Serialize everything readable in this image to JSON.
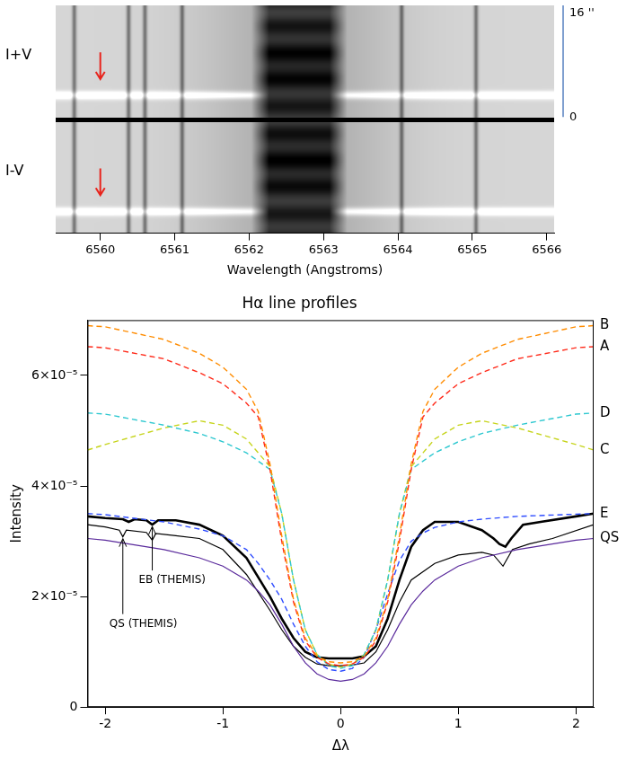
{
  "chart_data": [
    {
      "type": "spectrogram",
      "x_label": "Wavelength (Angstroms)",
      "xlim": [
        6559.4,
        6566.1
      ],
      "xticks": [
        6560,
        6561,
        6562,
        6563,
        6564,
        6565,
        6566
      ],
      "tick_labels": "x",
      "panels": [
        "I+V",
        "I-V"
      ],
      "scale_labels": [
        "16 ''",
        "0"
      ],
      "line_core": [
        6562.15,
        6563.2
      ],
      "absorption_lines": [
        6559.65,
        6560.38,
        6560.6,
        6561.1,
        6564.05,
        6565.05
      ],
      "arrow_wavelength": 6560
    },
    {
      "type": "line",
      "title": "Hα line profiles",
      "x_label": "Δλ",
      "y_label": "Intensity",
      "xlim": [
        -2.15,
        2.15
      ],
      "xticks": [
        -2,
        -1,
        0,
        1,
        2
      ],
      "ylim": [
        0,
        7e-05
      ],
      "yticks": [
        0,
        {
          "value": 2e-05,
          "label": "2×10⁻⁵"
        },
        {
          "value": 4e-05,
          "label": "4×10⁻⁵"
        },
        {
          "value": 6e-05,
          "label": "6×10⁻⁵"
        }
      ],
      "grid": false,
      "series": [
        {
          "name": "B",
          "color": "#ff8c00",
          "line_style": "dashed",
          "x": [
            -2.15,
            -2.0,
            -1.5,
            -1.2,
            -1.0,
            -0.8,
            -0.7,
            -0.6,
            -0.5,
            -0.4,
            -0.3,
            -0.2,
            -0.1,
            0,
            0.1,
            0.2,
            0.3,
            0.4,
            0.5,
            0.6,
            0.7,
            0.8,
            1.0,
            1.2,
            1.5,
            2.0,
            2.15
          ],
          "values": [
            6.9e-05,
            6.88e-05,
            6.65e-05,
            6.4e-05,
            6.15e-05,
            5.75e-05,
            5.35e-05,
            4.4e-05,
            3.1e-05,
            1.95e-05,
            1.25e-05,
            9.2e-06,
            8.2e-06,
            8e-06,
            8.2e-06,
            9.2e-06,
            1.25e-05,
            1.95e-05,
            3.1e-05,
            4.4e-05,
            5.35e-05,
            5.75e-05,
            6.15e-05,
            6.4e-05,
            6.65e-05,
            6.88e-05,
            6.9e-05
          ]
        },
        {
          "name": "A",
          "color": "#ff2a1a",
          "line_style": "dashed",
          "x": [
            -2.15,
            -2.0,
            -1.5,
            -1.2,
            -1.0,
            -0.8,
            -0.7,
            -0.6,
            -0.5,
            -0.4,
            -0.3,
            -0.2,
            -0.1,
            0,
            0.1,
            0.2,
            0.3,
            0.4,
            0.5,
            0.6,
            0.7,
            0.8,
            1.0,
            1.2,
            1.5,
            2.0,
            2.15
          ],
          "values": [
            6.52e-05,
            6.5e-05,
            6.3e-05,
            6.05e-05,
            5.85e-05,
            5.5e-05,
            5.25e-05,
            4.3e-05,
            3e-05,
            1.9e-05,
            1.2e-05,
            9e-06,
            7.8e-06,
            7.5e-06,
            7.8e-06,
            9e-06,
            1.2e-05,
            1.9e-05,
            3e-05,
            4.3e-05,
            5.25e-05,
            5.5e-05,
            5.85e-05,
            6.05e-05,
            6.3e-05,
            6.5e-05,
            6.52e-05
          ]
        },
        {
          "name": "D",
          "color": "#2ec8d0",
          "line_style": "dashed",
          "x": [
            -2.15,
            -2.0,
            -1.5,
            -1.2,
            -1.0,
            -0.8,
            -0.7,
            -0.6,
            -0.5,
            -0.4,
            -0.3,
            -0.2,
            -0.1,
            0,
            0.1,
            0.2,
            0.3,
            0.4,
            0.5,
            0.6,
            0.7,
            0.8,
            1.0,
            1.2,
            1.5,
            2.0,
            2.15
          ],
          "values": [
            5.32e-05,
            5.3e-05,
            5.1e-05,
            4.95e-05,
            4.8e-05,
            4.6e-05,
            4.45e-05,
            4.3e-05,
            3.5e-05,
            2.3e-05,
            1.4e-05,
            9.5e-06,
            7.5e-06,
            7e-06,
            7.5e-06,
            9.5e-06,
            1.4e-05,
            2.3e-05,
            3.5e-05,
            4.3e-05,
            4.45e-05,
            4.6e-05,
            4.8e-05,
            4.95e-05,
            5.1e-05,
            5.3e-05,
            5.32e-05
          ]
        },
        {
          "name": "C",
          "color": "#c6d41c",
          "line_style": "dashed",
          "x": [
            -2.15,
            -2.0,
            -1.5,
            -1.2,
            -1.0,
            -0.8,
            -0.7,
            -0.6,
            -0.5,
            -0.4,
            -0.3,
            -0.2,
            -0.1,
            0,
            0.1,
            0.2,
            0.3,
            0.4,
            0.5,
            0.6,
            0.7,
            0.8,
            1.0,
            1.2,
            1.5,
            2.0,
            2.15
          ],
          "values": [
            4.65e-05,
            4.75e-05,
            5.05e-05,
            5.18e-05,
            5.1e-05,
            4.85e-05,
            4.6e-05,
            4.35e-05,
            3.5e-05,
            2.3e-05,
            1.4e-05,
            9.5e-06,
            7.8e-06,
            7.2e-06,
            7.8e-06,
            9.5e-06,
            1.4e-05,
            2.3e-05,
            3.5e-05,
            4.35e-05,
            4.6e-05,
            4.85e-05,
            5.1e-05,
            5.18e-05,
            5.05e-05,
            4.75e-05,
            4.65e-05
          ]
        },
        {
          "name": "E",
          "color": "#2f4dff",
          "line_style": "dashed",
          "x": [
            -2.15,
            -2.0,
            -1.5,
            -1.2,
            -1.0,
            -0.8,
            -0.7,
            -0.6,
            -0.5,
            -0.4,
            -0.3,
            -0.2,
            -0.1,
            0,
            0.1,
            0.2,
            0.3,
            0.4,
            0.5,
            0.6,
            0.7,
            0.8,
            1.0,
            1.2,
            1.5,
            2.0,
            2.15
          ],
          "values": [
            3.5e-05,
            3.48e-05,
            3.35e-05,
            3.22e-05,
            3.1e-05,
            2.85e-05,
            2.6e-05,
            2.3e-05,
            1.95e-05,
            1.5e-05,
            1.1e-05,
            8.2e-06,
            6.8e-06,
            6.5e-06,
            7e-06,
            9e-06,
            1.4e-05,
            2.05e-05,
            2.65e-05,
            3e-05,
            3.15e-05,
            3.25e-05,
            3.35e-05,
            3.4e-05,
            3.45e-05,
            3.49e-05,
            3.5e-05
          ]
        },
        {
          "name": "QS",
          "color": "#5a2a9c",
          "line_style": "solid",
          "x": [
            -2.15,
            -2.0,
            -1.5,
            -1.2,
            -1.0,
            -0.8,
            -0.7,
            -0.6,
            -0.5,
            -0.4,
            -0.3,
            -0.2,
            -0.1,
            0,
            0.1,
            0.2,
            0.3,
            0.4,
            0.5,
            0.6,
            0.7,
            0.8,
            1.0,
            1.2,
            1.5,
            2.0,
            2.15
          ],
          "values": [
            3.05e-05,
            3.02e-05,
            2.85e-05,
            2.7e-05,
            2.55e-05,
            2.3e-05,
            2.1e-05,
            1.85e-05,
            1.5e-05,
            1.1e-05,
            8e-06,
            6e-06,
            5e-06,
            4.7e-06,
            5e-06,
            6e-06,
            8e-06,
            1.1e-05,
            1.5e-05,
            1.85e-05,
            2.1e-05,
            2.3e-05,
            2.55e-05,
            2.7e-05,
            2.85e-05,
            3.02e-05,
            3.05e-05
          ]
        },
        {
          "color": "#000000",
          "line_style": "solid",
          "x": [
            -2.15,
            -2.0,
            -1.88,
            -1.85,
            -1.82,
            -1.65,
            -1.6,
            -1.57,
            -1.4,
            -1.2,
            -1.0,
            -0.8,
            -0.6,
            -0.5,
            -0.4,
            -0.3,
            -0.2,
            -0.1,
            0,
            0.1,
            0.2,
            0.3,
            0.4,
            0.5,
            0.6,
            0.8,
            1.0,
            1.2,
            1.3,
            1.38,
            1.42,
            1.46,
            1.6,
            1.8,
            2.15
          ],
          "values": [
            3.3e-05,
            3.26e-05,
            3.2e-05,
            3.08e-05,
            3.2e-05,
            3.16e-05,
            3.02e-05,
            3.14e-05,
            3.1e-05,
            3.05e-05,
            2.85e-05,
            2.4e-05,
            1.75e-05,
            1.4e-05,
            1.1e-05,
            9e-06,
            7.8e-06,
            7.5e-06,
            7.5e-06,
            7.6e-06,
            8e-06,
            1e-05,
            1.4e-05,
            1.9e-05,
            2.3e-05,
            2.6e-05,
            2.75e-05,
            2.8e-05,
            2.75e-05,
            2.55e-05,
            2.7e-05,
            2.85e-05,
            2.95e-05,
            3.05e-05,
            3.3e-05
          ]
        },
        {
          "color": "#000000",
          "line_style": "thick",
          "x": [
            -2.15,
            -2.0,
            -1.85,
            -1.8,
            -1.75,
            -1.65,
            -1.6,
            -1.55,
            -1.4,
            -1.2,
            -1.0,
            -0.8,
            -0.6,
            -0.5,
            -0.4,
            -0.3,
            -0.2,
            -0.1,
            0,
            0.1,
            0.2,
            0.3,
            0.4,
            0.5,
            0.6,
            0.7,
            0.8,
            1.0,
            1.2,
            1.3,
            1.35,
            1.4,
            1.45,
            1.55,
            1.7,
            2.0,
            2.15
          ],
          "values": [
            3.45e-05,
            3.42e-05,
            3.4e-05,
            3.35e-05,
            3.4e-05,
            3.38e-05,
            3.3e-05,
            3.38e-05,
            3.38e-05,
            3.3e-05,
            3.1e-05,
            2.7e-05,
            2e-05,
            1.6e-05,
            1.25e-05,
            1e-05,
            9e-06,
            8.8e-06,
            8.8e-06,
            8.8e-06,
            9.2e-06,
            1.1e-05,
            1.6e-05,
            2.3e-05,
            2.9e-05,
            3.2e-05,
            3.35e-05,
            3.35e-05,
            3.2e-05,
            3.05e-05,
            2.95e-05,
            2.9e-05,
            3.05e-05,
            3.3e-05,
            3.35e-05,
            3.45e-05,
            3.5e-05
          ]
        }
      ],
      "annotations": [
        {
          "text": "EB (THEMIS)",
          "x": -1.6,
          "y": 3.3e-05
        },
        {
          "text": "QS (THEMIS)",
          "x": -1.85,
          "y": 3.08e-05
        }
      ]
    }
  ]
}
